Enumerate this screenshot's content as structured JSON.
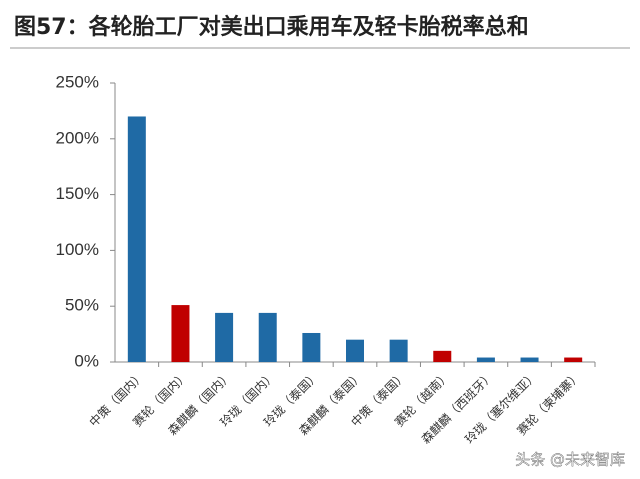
{
  "chart_data": {
    "type": "bar",
    "title": "图57：各轮胎工厂对美出口乘用车及轻卡胎税率总和",
    "categories": [
      "中策（国内）",
      "赛轮（国内）",
      "森麒麟（国内）",
      "玲珑（国内）",
      "玲珑（泰国）",
      "森麒麟（泰国）",
      "中策（泰国）",
      "赛轮（越南）",
      "森麒麟（西班牙）",
      "玲珑（塞尔维亚）",
      "赛轮（柬埔寨）"
    ],
    "values": [
      220,
      51,
      44,
      44,
      26,
      20,
      20,
      10,
      4,
      4,
      4
    ],
    "colors": [
      "#1f6aa5",
      "#c00000",
      "#1f6aa5",
      "#1f6aa5",
      "#1f6aa5",
      "#1f6aa5",
      "#1f6aa5",
      "#c00000",
      "#1f6aa5",
      "#1f6aa5",
      "#c00000"
    ],
    "ylim": [
      0,
      250
    ],
    "yticks": [
      {
        "value": 0,
        "label": "0%"
      },
      {
        "value": 50,
        "label": "50%"
      },
      {
        "value": 100,
        "label": "100%"
      },
      {
        "value": 150,
        "label": "150%"
      },
      {
        "value": 200,
        "label": "200%"
      },
      {
        "value": 250,
        "label": "250%"
      }
    ],
    "grid": false,
    "watermark": "头条 @未来智库"
  }
}
